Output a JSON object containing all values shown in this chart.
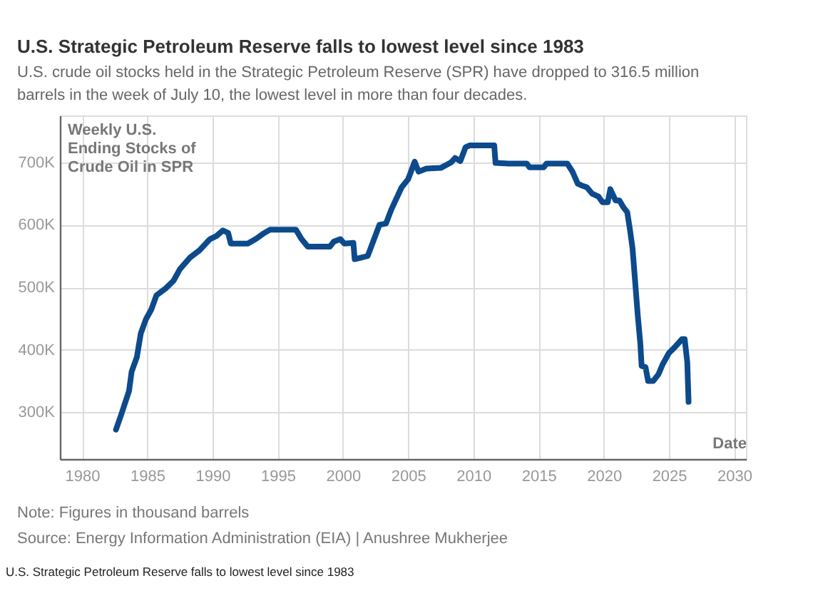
{
  "chart_data": {
    "type": "line",
    "title": "U.S. Strategic Petroleum Reserve falls to lowest level since 1983",
    "subtitle": "U.S. crude oil stocks held in the Strategic Petroleum Reserve (SPR) have dropped to 316.5 million barrels in the week of July 10, the lowest level in more than four decades.",
    "xlabel": "Date",
    "ylabel": "Weekly U.S. Ending Stocks of Crude Oil in SPR",
    "annotations": [
      "Note: Figures in thousand barrels",
      "Source: Energy Information Administration (EIA) | Anushree Mukherjee",
      "U.S. Strategic Petroleum Reserve falls to lowest level since 1983"
    ],
    "x": [
      1982.6,
      1983.0,
      1983.6,
      1983.8,
      1984.2,
      1984.5,
      1984.9,
      1985.3,
      1985.7,
      1986.4,
      1987.0,
      1987.5,
      1988.3,
      1989.0,
      1989.8,
      1990.3,
      1990.8,
      1991.2,
      1991.4,
      1992.7,
      1993.3,
      1993.9,
      1994.4,
      1996.4,
      1996.8,
      1997.3,
      1999.0,
      1999.3,
      1999.8,
      2000.1,
      2000.8,
      2000.9,
      2001.9,
      2002.8,
      2003.3,
      2003.7,
      2004.5,
      2005.0,
      2005.5,
      2005.8,
      2006.4,
      2007.5,
      2008.3,
      2008.6,
      2009.0,
      2009.4,
      2009.7,
      2011.6,
      2011.7,
      2012.7,
      2014.1,
      2014.3,
      2015.4,
      2015.6,
      2017.2,
      2017.6,
      2018.0,
      2018.3,
      2018.7,
      2019.1,
      2019.6,
      2019.9,
      2020.3,
      2020.5,
      2020.9,
      2021.2,
      2021.5,
      2021.8,
      2022.0,
      2022.2,
      2022.4,
      2022.6,
      2022.8,
      2022.9,
      2023.2,
      2023.4,
      2023.8,
      2024.2,
      2024.5,
      2025.0,
      2025.4,
      2026.0,
      2026.2,
      2026.4,
      2026.5
    ],
    "series": [
      {
        "color": "#0c4a8c",
        "values": [
          272000,
          296000,
          334000,
          365000,
          388000,
          426000,
          449000,
          464000,
          487000,
          498000,
          510000,
          529000,
          548000,
          559000,
          577000,
          582000,
          591000,
          587000,
          570000,
          570000,
          577000,
          586000,
          592000,
          592000,
          578000,
          565000,
          565000,
          573000,
          577000,
          570000,
          571000,
          545000,
          550000,
          600000,
          602000,
          624000,
          660000,
          673000,
          701000,
          685000,
          690000,
          691000,
          700000,
          707000,
          702000,
          724000,
          727000,
          727000,
          699000,
          698000,
          698000,
          692000,
          692000,
          698000,
          698000,
          685000,
          666000,
          663000,
          660000,
          650000,
          645000,
          636000,
          636000,
          657000,
          639000,
          639000,
          628000,
          620000,
          593000,
          563000,
          510000,
          456000,
          410000,
          374000,
          372000,
          350000,
          350000,
          361000,
          376000,
          395000,
          403000,
          417000,
          417000,
          380000,
          316500
        ]
      }
    ],
    "xlim": [
      1978.3,
      2030.9
    ],
    "xticks": [
      1980,
      1985,
      1990,
      1995,
      2000,
      2005,
      2010,
      2015,
      2020,
      2025,
      2030
    ],
    "ylim": [
      225000,
      775000
    ],
    "yticks": [
      {
        "value": 300000,
        "label": "300K"
      },
      {
        "value": 400000,
        "label": "400K"
      },
      {
        "value": 500000,
        "label": "500K"
      },
      {
        "value": 600000,
        "label": "600K"
      },
      {
        "value": 700000,
        "label": "700K"
      }
    ],
    "grid": true
  }
}
